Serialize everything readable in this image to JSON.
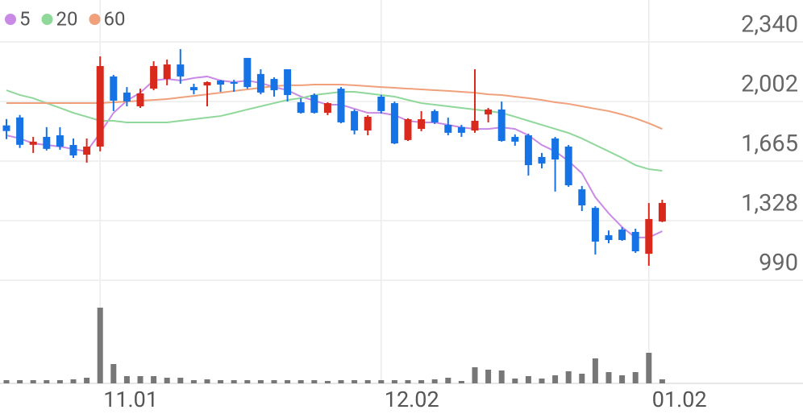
{
  "chart_data": {
    "type": "candlestick",
    "categories": [
      null,
      null,
      null,
      null,
      null,
      null,
      null,
      "11.01",
      null,
      null,
      null,
      null,
      null,
      null,
      null,
      null,
      null,
      null,
      null,
      null,
      null,
      null,
      null,
      null,
      null,
      null,
      null,
      null,
      "12.02",
      null,
      null,
      null,
      null,
      null,
      null,
      null,
      null,
      null,
      null,
      null,
      null,
      null,
      null,
      null,
      null,
      null,
      null,
      null,
      "01.02",
      null
    ],
    "open": [
      1867,
      1912,
      1757,
      1802,
      1811,
      1756,
      1701,
      1747,
      2144,
      2053,
      1975,
      2075,
      2130,
      2212,
      2084,
      2093,
      2121,
      2112,
      2249,
      2158,
      2130,
      2185,
      1998,
      2039,
      1938,
      2075,
      1948,
      1838,
      2030,
      1993,
      1784,
      1847,
      1948,
      1870,
      1857,
      1838,
      1929,
      1957,
      1802,
      1811,
      1688,
      1793,
      1747,
      1505,
      1400,
      1245,
      1277,
      1264,
      1140,
      1323
    ],
    "high": [
      1903,
      1926,
      1802,
      1857,
      1857,
      1793,
      1793,
      2258,
      2153,
      2084,
      2075,
      2230,
      2240,
      2299,
      2103,
      2116,
      2125,
      2125,
      2249,
      2185,
      2139,
      2185,
      2020,
      2048,
      1998,
      2084,
      1957,
      1925,
      2039,
      2002,
      1907,
      1948,
      1957,
      1911,
      1870,
      2185,
      1966,
      2002,
      1816,
      1820,
      1711,
      1802,
      1756,
      1524,
      1409,
      1272,
      1291,
      1282,
      1427,
      1446
    ],
    "low": [
      1789,
      1739,
      1711,
      1725,
      1729,
      1683,
      1656,
      1720,
      1948,
      1975,
      1966,
      2066,
      2094,
      2103,
      2043,
      1975,
      2057,
      2057,
      2075,
      2043,
      2030,
      2002,
      1934,
      1934,
      1925,
      1879,
      1816,
      1811,
      1934,
      1761,
      1779,
      1834,
      1875,
      1811,
      1802,
      1825,
      1884,
      1775,
      1752,
      1583,
      1624,
      1492,
      1519,
      1382,
      1136,
      1200,
      1213,
      1145,
      1072,
      1319
    ],
    "close": [
      1835,
      1757,
      1775,
      1734,
      1747,
      1697,
      1747,
      2203,
      2007,
      2002,
      2048,
      2203,
      2212,
      2144,
      2066,
      2112,
      2098,
      2103,
      2084,
      2053,
      2066,
      2039,
      1938,
      1938,
      1993,
      1884,
      1838,
      1916,
      1948,
      1765,
      1902,
      1902,
      1884,
      1825,
      1825,
      1893,
      1957,
      1779,
      1775,
      1642,
      1651,
      1674,
      1528,
      1414,
      1209,
      1218,
      1218,
      1154,
      1337,
      1428
    ],
    "volume": [
      4,
      4,
      4,
      4,
      4,
      5,
      7,
      94,
      24,
      9,
      9,
      9,
      7,
      7,
      4,
      5,
      4,
      4,
      4,
      4,
      4,
      4,
      4,
      4,
      3,
      4,
      4,
      4,
      4,
      4,
      4,
      4,
      5,
      7,
      3,
      20,
      17,
      16,
      6,
      9,
      6,
      10,
      15,
      12,
      31,
      14,
      10,
      14,
      38,
      5
    ],
    "up_color": "#d9291c",
    "down_color": "#1673e6",
    "volume_color": "#777777",
    "series": [
      {
        "name": "5",
        "color": "#c98ae6",
        "values": [
          1811,
          1793,
          1765,
          1756,
          1747,
          1733,
          1720,
          1824,
          1938,
          2007,
          2052,
          2121,
          2130,
          2121,
          2135,
          2144,
          2121,
          2112,
          2121,
          2107,
          2084,
          2066,
          2030,
          2007,
          1984,
          1984,
          1961,
          1938,
          1938,
          1925,
          1893,
          1884,
          1884,
          1870,
          1856,
          1847,
          1847,
          1856,
          1847,
          1811,
          1756,
          1720,
          1665,
          1596,
          1460,
          1369,
          1291,
          1232,
          1232,
          1268
        ]
      },
      {
        "name": "20",
        "color": "#8fd89a",
        "values": [
          2066,
          2039,
          2021,
          1993,
          1966,
          1938,
          1916,
          1893,
          1893,
          1884,
          1884,
          1884,
          1884,
          1893,
          1902,
          1911,
          1920,
          1938,
          1957,
          1975,
          1993,
          2011,
          2021,
          2039,
          2048,
          2057,
          2057,
          2048,
          2039,
          2030,
          2011,
          1993,
          1984,
          1975,
          1966,
          1957,
          1948,
          1938,
          1916,
          1893,
          1870,
          1847,
          1824,
          1793,
          1756,
          1720,
          1683,
          1642,
          1619,
          1610
        ]
      },
      {
        "name": "60",
        "color": "#f0a07a",
        "values": [
          1993,
          1993,
          1993,
          1993,
          1993,
          1993,
          1993,
          1993,
          1998,
          2002,
          2007,
          2011,
          2016,
          2025,
          2034,
          2043,
          2052,
          2062,
          2071,
          2080,
          2089,
          2094,
          2094,
          2098,
          2098,
          2098,
          2094,
          2089,
          2084,
          2080,
          2075,
          2071,
          2066,
          2062,
          2057,
          2052,
          2043,
          2039,
          2030,
          2021,
          2011,
          1998,
          1989,
          1975,
          1961,
          1948,
          1929,
          1907,
          1879,
          1847
        ]
      }
    ],
    "ylim": [
      990,
      2577
    ],
    "yticks": [
      990,
      {
        "value": 1328,
        "label": "1,328"
      },
      {
        "value": 1665,
        "label": "1,665"
      },
      {
        "value": 2002,
        "label": "2,002"
      },
      {
        "value": 2340,
        "label": "2,340"
      }
    ],
    "grid": true
  }
}
